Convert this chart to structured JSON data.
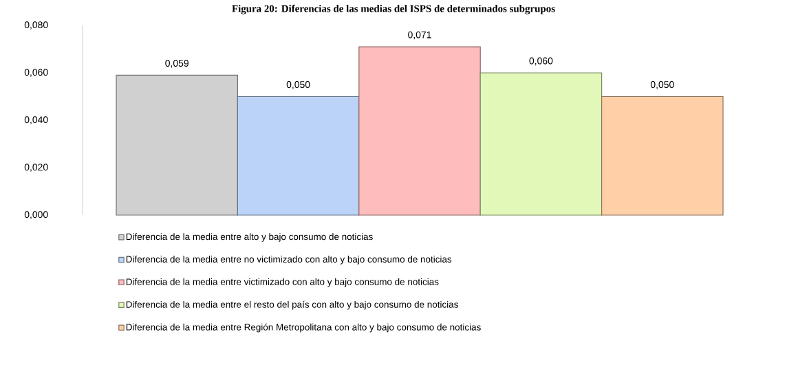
{
  "chart_data": {
    "type": "bar",
    "title": "Figura 20: Diferencias de las medias del ISPS de determinados subgrupos",
    "categories": [
      null
    ],
    "ylim": [
      0,
      0.08
    ],
    "yticks": [
      {
        "value": 0,
        "label": "0,000"
      },
      {
        "value": 0.02,
        "label": "0,020"
      },
      {
        "value": 0.04,
        "label": "0,040"
      },
      {
        "value": 0.06,
        "label": "0,060"
      },
      {
        "value": 0.08,
        "label": "0,080"
      }
    ],
    "series": [
      {
        "name": "Diferencia de la media entre alto y bajo consumo de noticias",
        "color": "#d0d0d0",
        "values": [
          0.059
        ],
        "value_labels": [
          "0,059"
        ]
      },
      {
        "name": "Diferencia de la media entre no victimizado con alto y bajo consumo de noticias",
        "color": "#bcd3f8",
        "values": [
          0.05
        ],
        "value_labels": [
          "0,050"
        ]
      },
      {
        "name": "Diferencia de la media entre victimizado con alto y bajo consumo de noticias",
        "color": "#ffbcbc",
        "values": [
          0.071
        ],
        "value_labels": [
          "0,071"
        ]
      },
      {
        "name": "Diferencia de la media entre el resto del país con alto y bajo consumo de noticias",
        "color": "#e2f8b8",
        "values": [
          0.06
        ],
        "value_labels": [
          "0,060"
        ]
      },
      {
        "name": "Diferencia de la media entre Región Metropolitana con alto y bajo consumo de noticias",
        "color": "#ffd0a8",
        "values": [
          0.05
        ],
        "value_labels": [
          "0,050"
        ]
      }
    ],
    "legend": "bottom",
    "grid": false
  }
}
